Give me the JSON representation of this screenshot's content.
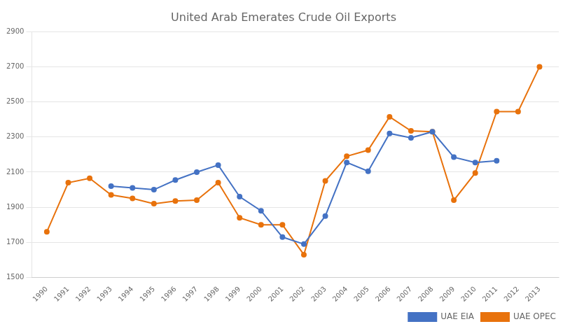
{
  "chart_data": {
    "type": "line",
    "title": "United Arab Emerates Crude Oil Exports",
    "x": [
      1990,
      1991,
      1992,
      1993,
      1994,
      1995,
      1996,
      1997,
      1998,
      1999,
      2000,
      2001,
      2002,
      2003,
      2004,
      2005,
      2006,
      2007,
      2008,
      2009,
      2010,
      2011,
      2012,
      2013
    ],
    "series": [
      {
        "name": "UAE EIA",
        "color": "#4472C4",
        "marker": "circle",
        "values": [
          null,
          null,
          null,
          2020,
          2010,
          2000,
          2055,
          2100,
          2140,
          1960,
          1880,
          1730,
          1690,
          1850,
          2155,
          2105,
          2320,
          2295,
          2330,
          2185,
          2155,
          2165,
          null,
          null
        ]
      },
      {
        "name": "UAE OPEC",
        "color": "#E8720C",
        "marker": "circle",
        "values": [
          1760,
          2040,
          2065,
          1970,
          1950,
          1920,
          1935,
          1940,
          2040,
          1840,
          1800,
          1800,
          1630,
          2050,
          2190,
          2225,
          2415,
          2335,
          2330,
          1940,
          2095,
          2445,
          2445,
          2700
        ]
      }
    ],
    "xlim": [
      1989.3,
      2013.9
    ],
    "xticks": [
      1990,
      1991,
      1992,
      1993,
      1994,
      1995,
      1996,
      1997,
      1998,
      1999,
      2000,
      2001,
      2002,
      2003,
      2004,
      2005,
      2006,
      2007,
      2008,
      2009,
      2010,
      2011,
      2012,
      2013
    ],
    "ylim": [
      1500,
      2900
    ],
    "yticks": [
      1500,
      1700,
      1900,
      2100,
      2300,
      2500,
      2700,
      2900
    ],
    "grid": "y",
    "legend": "lower right"
  }
}
